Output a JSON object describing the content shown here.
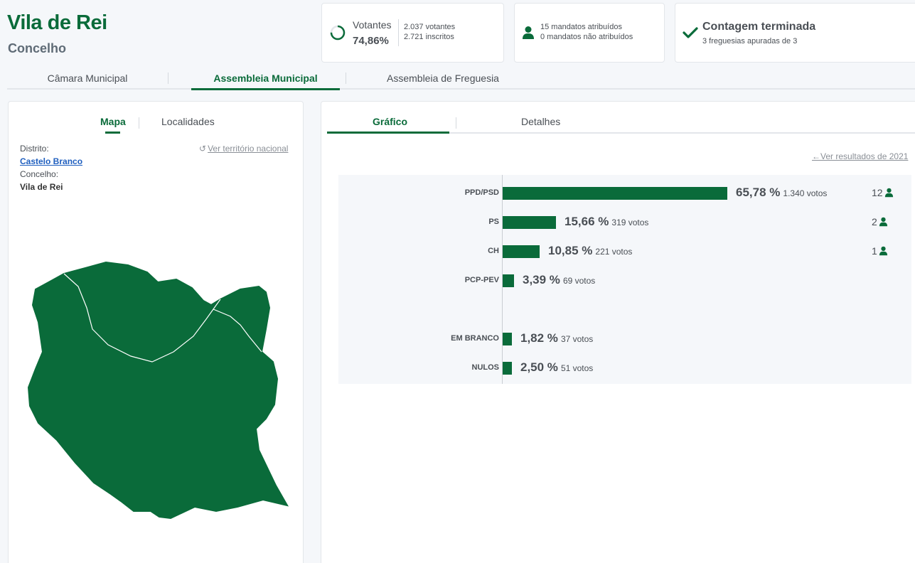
{
  "header": {
    "title": "Vila de Rei",
    "subtitle": "Concelho"
  },
  "summary": {
    "votantes": {
      "label": "Votantes",
      "percent": "74,86%",
      "percent_value": 74.86,
      "line1": "2.037 votantes",
      "line2": "2.721 inscritos"
    },
    "mandatos": {
      "line1": "15 mandatos atribuídos",
      "line2": "0 mandatos não atribuídos",
      "icon": "person-icon"
    },
    "contagem": {
      "title": "Contagem terminada",
      "sub": "3 freguesias apuradas de 3",
      "icon": "check-icon"
    }
  },
  "main_tabs": [
    {
      "label": "Câmara Municipal",
      "active": false
    },
    {
      "label": "Assembleia Municipal",
      "active": true
    },
    {
      "label": "Assembleia de Freguesia",
      "active": false
    }
  ],
  "left_panel": {
    "tabs": [
      {
        "label": "Mapa",
        "active": true
      },
      {
        "label": "Localidades",
        "active": false
      }
    ],
    "distrito_label": "Distrito:",
    "distrito_value": "Castelo Branco",
    "concelho_label": "Concelho:",
    "concelho_value": "Vila de Rei",
    "national_link": "Ver território nacional",
    "map_color": "#0a6b3a"
  },
  "right_panel": {
    "tabs": [
      {
        "label": "Gráfico",
        "active": true
      },
      {
        "label": "Detalhes",
        "active": false
      }
    ],
    "prev_results_link": "Ver resultados de 2021"
  },
  "chart_data": {
    "type": "bar",
    "orientation": "horizontal",
    "color": "#0a6b3a",
    "categories": [
      "PPD/PSD",
      "PS",
      "CH",
      "PCP-PEV",
      "EM BRANCO",
      "NULOS"
    ],
    "values": [
      65.78,
      15.66,
      10.85,
      3.39,
      1.82,
      2.5
    ],
    "percent_labels": [
      "65,78 %",
      "15,66 %",
      "10,85 %",
      "3,39 %",
      "1,82 %",
      "2,50 %"
    ],
    "votes": [
      "1.340 votos",
      "319 votos",
      "221 votos",
      "69 votos",
      "37 votos",
      "51 votos"
    ],
    "seats": [
      "12",
      "2",
      "1",
      "",
      "",
      ""
    ]
  }
}
